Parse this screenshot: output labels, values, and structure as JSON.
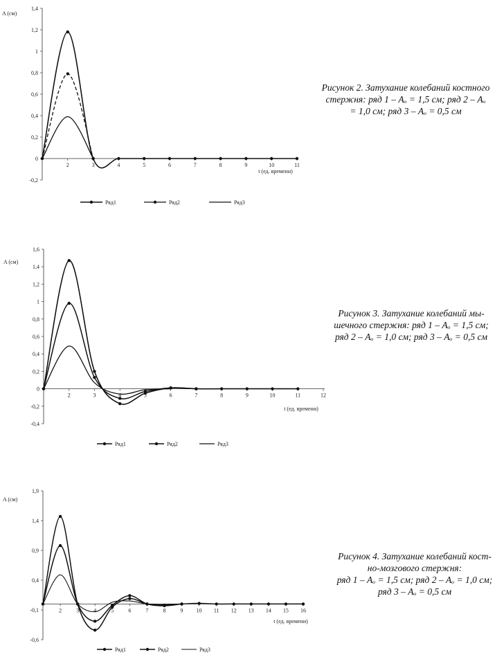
{
  "captions": [
    {
      "lines": [
        "Рисунок 2. Затухание колебаний костного",
        "стержня: ряд 1 – Aₒ = 1,5 см; ряд 2 – Aₒ",
        "= 1,0 см; ряд 3 – Aₒ = 0,5 см"
      ]
    },
    {
      "lines": [
        "Рисунок 3. Затухание колебаний мы-",
        "шечного стержня: ряд 1 – Aₒ = 1,5 см;",
        "ряд 2 – Aₒ = 1,0 см; ряд 3 – Aₒ = 0,5 см"
      ]
    },
    {
      "lines": [
        "Рисунок 4. Затухание колебаний кост-",
        "но-мозгового стержня:",
        "ряд 1 – Aₒ = 1,5 см; ряд 2 – Aₒ = 1,0 см;",
        "ряд 3 – Aₒ = 0,5 см"
      ]
    }
  ],
  "chart_data": [
    {
      "type": "line",
      "ylabel": "A (см)",
      "xlabel": "t (ед. времени)",
      "ylim": [
        -0.2,
        1.4
      ],
      "yticks": [
        "1,4",
        "1,2",
        "1",
        "0,8",
        "0,6",
        "0,4",
        "0,2",
        "0",
        "-0,2"
      ],
      "ytick_values": [
        1.4,
        1.2,
        1.0,
        0.8,
        0.6,
        0.4,
        0.2,
        0,
        -0.2
      ],
      "xlim": [
        1,
        11
      ],
      "xticks": [
        "2",
        "3",
        "4",
        "5",
        "6",
        "7",
        "8",
        "9",
        "10",
        "11"
      ],
      "series": [
        {
          "name": "Ряд1",
          "x": [
            1,
            2,
            3,
            4,
            5,
            6,
            7,
            8,
            9,
            10,
            11
          ],
          "values": [
            0,
            1.18,
            0,
            0,
            0,
            0,
            0,
            0,
            0,
            0,
            0
          ]
        },
        {
          "name": "Ряд2",
          "x": [
            1,
            2,
            3
          ],
          "values": [
            0,
            0.79,
            0
          ]
        },
        {
          "name": "Ряд3",
          "x": [
            1,
            2,
            3
          ],
          "values": [
            0,
            0.39,
            0
          ]
        }
      ],
      "legend": "bottom"
    },
    {
      "type": "line",
      "ylabel": "A (см)",
      "xlabel": "t (ед. времени)",
      "ylim": [
        -0.4,
        1.6
      ],
      "yticks": [
        "1,6",
        "1,4",
        "1,2",
        "1",
        "0,8",
        "0,6",
        "0,4",
        "0,2",
        "0",
        "-0,2",
        "-0,4"
      ],
      "ytick_values": [
        1.6,
        1.4,
        1.2,
        1.0,
        0.8,
        0.6,
        0.4,
        0.2,
        0,
        -0.2,
        -0.4
      ],
      "xlim": [
        1,
        12
      ],
      "xticks": [
        "2",
        "3",
        "4",
        "5",
        "6",
        "7",
        "8",
        "9",
        "10",
        "11",
        "12"
      ],
      "series": [
        {
          "name": "Ряд1",
          "x": [
            1,
            2,
            3,
            4,
            5,
            6,
            7,
            8,
            9,
            10,
            11
          ],
          "values": [
            0,
            1.47,
            0.2,
            -0.17,
            -0.05,
            0.01,
            0,
            0,
            0,
            0,
            0
          ]
        },
        {
          "name": "Ряд2",
          "x": [
            1,
            2,
            3,
            4,
            5,
            6,
            7
          ],
          "values": [
            0,
            0.98,
            0.13,
            -0.11,
            -0.03,
            0.01,
            0
          ]
        },
        {
          "name": "Ряд3",
          "x": [
            1,
            2,
            3,
            4,
            5,
            6
          ],
          "values": [
            0,
            0.49,
            0.07,
            -0.06,
            -0.01,
            0
          ]
        }
      ],
      "legend": "bottom"
    },
    {
      "type": "line",
      "ylabel": "A (см)",
      "xlabel": "t (ед. времени)",
      "ylim": [
        -0.6,
        1.9
      ],
      "yticks": [
        "1,9",
        "1,4",
        "0,9",
        "0,4",
        "-0,1",
        "-0,6"
      ],
      "ytick_values": [
        1.9,
        1.4,
        0.9,
        0.4,
        -0.1,
        -0.6
      ],
      "xlim": [
        1,
        16
      ],
      "xticks": [
        "2",
        "3",
        "4",
        "5",
        "6",
        "7",
        "8",
        "9",
        "10",
        "11",
        "12",
        "13",
        "14",
        "15",
        "16"
      ],
      "series": [
        {
          "name": "Ряд1",
          "x": [
            1,
            2,
            3,
            4,
            5,
            6,
            7,
            8,
            9,
            10,
            11,
            12,
            13,
            14,
            15,
            16
          ],
          "values": [
            0,
            1.47,
            0,
            -0.44,
            -0.05,
            0.09,
            0,
            -0.02,
            0,
            0.01,
            0,
            0,
            0,
            0,
            0,
            0
          ]
        },
        {
          "name": "Ряд2",
          "x": [
            1,
            2,
            3,
            4,
            5,
            6,
            7,
            8,
            9
          ],
          "values": [
            0,
            0.98,
            0,
            -0.29,
            -0.02,
            0.14,
            0,
            -0.03,
            0
          ]
        },
        {
          "name": "Ряд3",
          "x": [
            1,
            2,
            3,
            4,
            5,
            6,
            7,
            8,
            9
          ],
          "values": [
            0,
            0.49,
            0,
            -0.13,
            0.03,
            0.05,
            0,
            -0.01,
            0
          ]
        }
      ],
      "legend": "bottom"
    }
  ]
}
